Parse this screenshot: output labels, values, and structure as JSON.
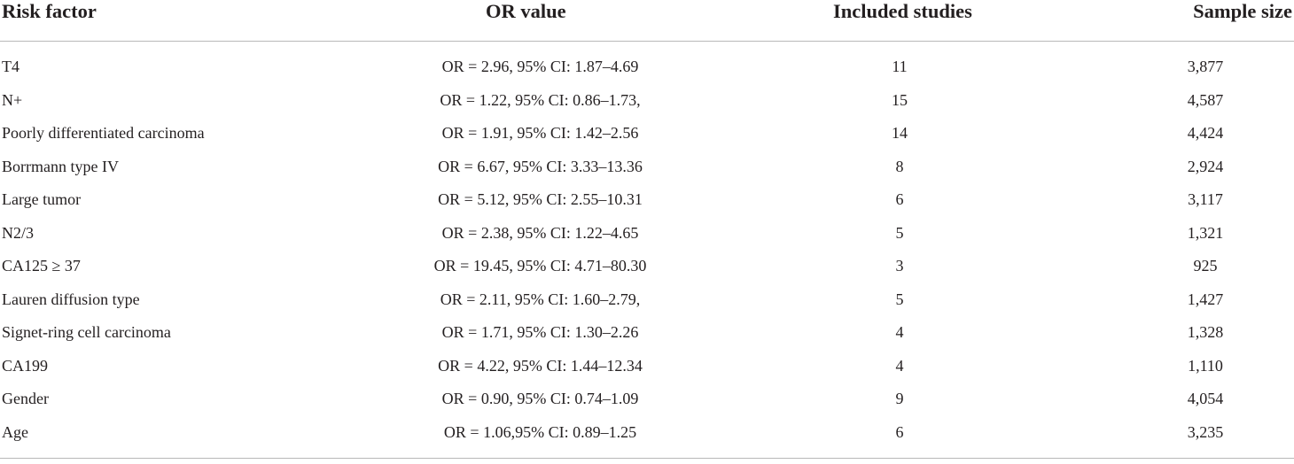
{
  "table": {
    "headers": {
      "risk_factor": "Risk factor",
      "or_value": "OR value",
      "included_studies": "Included studies",
      "sample_size": "Sample size"
    },
    "rows": [
      {
        "risk_factor": "T4",
        "or_value": "OR = 2.96, 95% CI: 1.87–4.69",
        "included_studies": "11",
        "sample_size": "3,877"
      },
      {
        "risk_factor": "N+",
        "or_value": "OR = 1.22, 95% CI: 0.86–1.73,",
        "included_studies": "15",
        "sample_size": "4,587"
      },
      {
        "risk_factor": "Poorly differentiated carcinoma",
        "or_value": "OR = 1.91, 95% CI: 1.42–2.56",
        "included_studies": "14",
        "sample_size": "4,424"
      },
      {
        "risk_factor": "Borrmann type IV",
        "or_value": "OR = 6.67, 95% CI: 3.33–13.36",
        "included_studies": "8",
        "sample_size": "2,924"
      },
      {
        "risk_factor": "Large tumor",
        "or_value": "OR = 5.12, 95% CI: 2.55–10.31",
        "included_studies": "6",
        "sample_size": "3,117"
      },
      {
        "risk_factor": "N2/3",
        "or_value": "OR = 2.38, 95% CI: 1.22–4.65",
        "included_studies": "5",
        "sample_size": "1,321"
      },
      {
        "risk_factor": "CA125 ≥ 37",
        "or_value": "OR = 19.45, 95% CI: 4.71–80.30",
        "included_studies": "3",
        "sample_size": "925"
      },
      {
        "risk_factor": "Lauren diffusion type",
        "or_value": "OR = 2.11, 95% CI: 1.60–2.79,",
        "included_studies": "5",
        "sample_size": "1,427"
      },
      {
        "risk_factor": "Signet-ring cell carcinoma",
        "or_value": "OR = 1.71, 95% CI: 1.30–2.26",
        "included_studies": "4",
        "sample_size": "1,328"
      },
      {
        "risk_factor": "CA199",
        "or_value": "OR = 4.22, 95% CI: 1.44–12.34",
        "included_studies": "4",
        "sample_size": "1,110"
      },
      {
        "risk_factor": "Gender",
        "or_value": "OR = 0.90, 95% CI: 0.74–1.09",
        "included_studies": "9",
        "sample_size": "4,054"
      },
      {
        "risk_factor": "Age",
        "or_value": "OR = 1.06,95% CI: 0.89–1.25",
        "included_studies": "6",
        "sample_size": "3,235"
      }
    ]
  }
}
